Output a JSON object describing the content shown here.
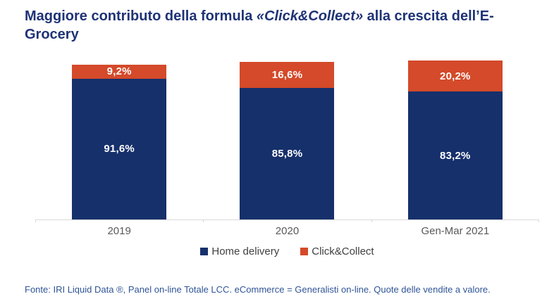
{
  "title": {
    "prefix": "Maggiore contributo della formula ",
    "highlight": "«Click&Collect»",
    "suffix": " alla crescita dell’E-Grocery"
  },
  "chart_data": {
    "type": "bar",
    "subtype": "stacked",
    "categories": [
      "2019",
      "2020",
      "Gen-Mar 2021"
    ],
    "series": [
      {
        "name": "Home delivery",
        "color": "#16306B",
        "values": [
          91.6,
          85.8,
          83.2
        ],
        "labels": [
          "91,6%",
          "85,8%",
          "83,2%"
        ]
      },
      {
        "name": "Click&Collect",
        "color": "#D44A2A",
        "values": [
          9.2,
          16.6,
          20.2
        ],
        "labels": [
          "9,2%",
          "16,6%",
          "20,2%"
        ]
      }
    ],
    "title": "Maggiore contributo della formula «Click&Collect» alla crescita dell’E-Grocery",
    "xlabel": "",
    "ylabel": "",
    "grid": false,
    "legend_position": "bottom",
    "axis_line_color": "#D9D9D9",
    "label_color": "#595959",
    "data_label_color": "#FFFFFF"
  },
  "footer": {
    "text": "Fonte: IRI Liquid Data ®, Panel on-line Totale LCC. eCommerce = Generalisti on-line. Quote delle vendite a valore."
  }
}
